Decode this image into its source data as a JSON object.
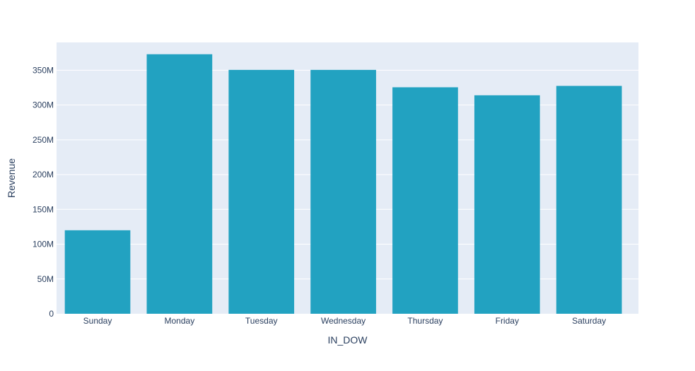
{
  "chart_data": {
    "type": "bar",
    "title": "",
    "xlabel": "IN_DOW",
    "ylabel": "Revenue",
    "categories": [
      "Sunday",
      "Monday",
      "Tuesday",
      "Wednesday",
      "Thursday",
      "Friday",
      "Saturday"
    ],
    "values": [
      120000000,
      373000000,
      350500000,
      350500000,
      325500000,
      314000000,
      327500000
    ],
    "ylim": [
      0,
      390000000
    ],
    "y_ticks": [
      0,
      50000000,
      100000000,
      150000000,
      200000000,
      250000000,
      300000000,
      350000000
    ],
    "y_tick_labels": [
      "0",
      "50M",
      "100M",
      "150M",
      "200M",
      "250M",
      "300M",
      "350M"
    ],
    "grid": true,
    "legend": "none"
  },
  "colors": {
    "bar": "#22a2c1",
    "plot_background": "#e5ecf6",
    "gridline": "#ffffff",
    "text": "#2a3f5f"
  }
}
